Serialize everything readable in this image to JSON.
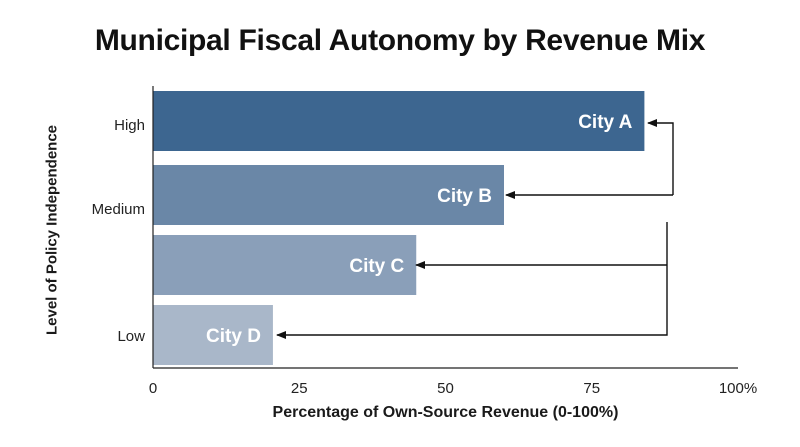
{
  "chart_data": {
    "type": "bar",
    "orientation": "horizontal",
    "title": "Municipal Fiscal Autonomy by Revenue Mix",
    "xlabel": "Percentage of Own-Source Revenue (0-100%)",
    "ylabel": "Level of Policy Independence",
    "xlim": [
      0,
      100
    ],
    "x_ticks": [
      "0",
      "25",
      "50",
      "75",
      "100%"
    ],
    "y_tick_labels": [
      "High",
      "Medium",
      "Low"
    ],
    "categories": [
      "City A",
      "City B",
      "City C",
      "City D"
    ],
    "values": [
      84,
      60,
      45,
      20.5
    ],
    "colors": [
      "#3d6690",
      "#6a87a7",
      "#8a9fb9",
      "#a9b7c9"
    ],
    "grid": false,
    "legend": "none",
    "annotations": "arrows from right side pointing to each city label"
  }
}
